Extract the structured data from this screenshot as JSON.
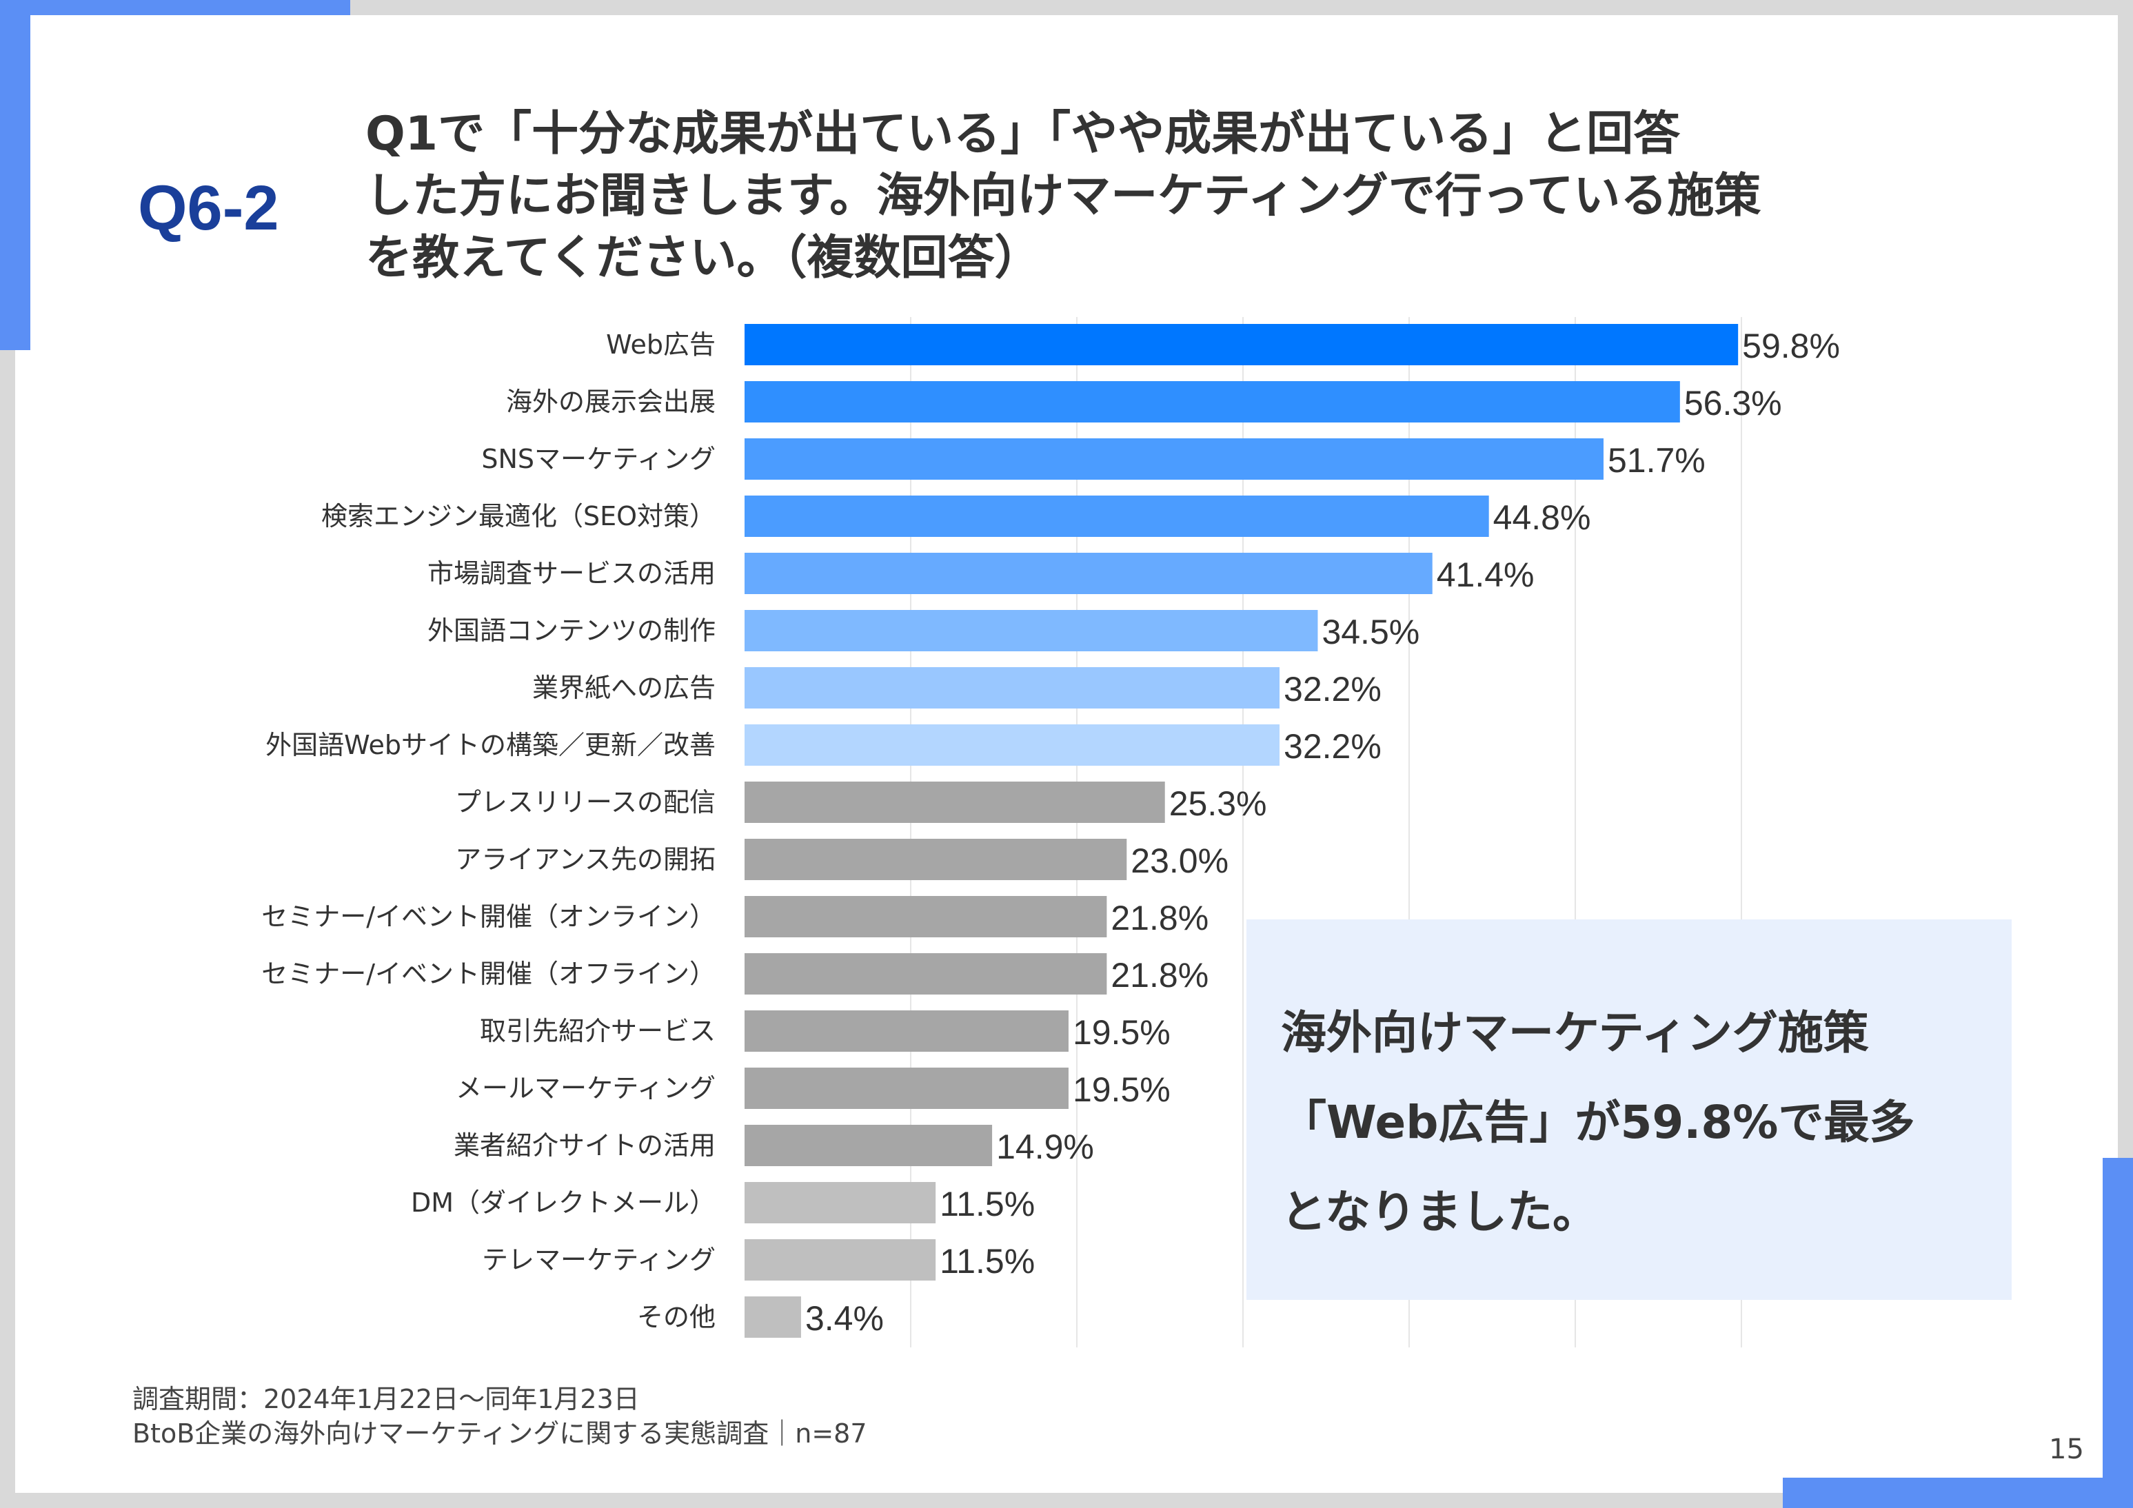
{
  "header": {
    "q_label": "Q6-2",
    "question_lines": [
      "Q1で「十分な成果が出ている」「やや成果が出ている」と回答",
      "した方にお聞きします。海外向けマーケティングで行っている施策",
      "を教えてください。（複数回答）"
    ]
  },
  "chart_data": {
    "type": "bar",
    "orientation": "horizontal",
    "categories": [
      "Web広告",
      "海外の展示会出展",
      "SNSマーケティング",
      "検索エンジン最適化（SEO対策）",
      "市場調査サービスの活用",
      "外国語コンテンツの制作",
      "業界紙への広告",
      "外国語Webサイトの構築／更新／改善",
      "プレスリリースの配信",
      "アライアンス先の開拓",
      "セミナー/イベント開催（オンライン）",
      "セミナー/イベント開催（オフライン）",
      "取引先紹介サービス",
      "メールマーケティング",
      "業者紹介サイトの活用",
      "DM（ダイレクトメール）",
      "テレマーケティング",
      "その他"
    ],
    "values": [
      59.8,
      56.3,
      51.7,
      44.8,
      41.4,
      34.5,
      32.2,
      32.2,
      25.3,
      23.0,
      21.8,
      21.8,
      19.5,
      19.5,
      14.9,
      11.5,
      11.5,
      3.4
    ],
    "value_labels": [
      "59.8%",
      "56.3%",
      "51.7%",
      "44.8%",
      "41.4%",
      "34.5%",
      "32.2%",
      "32.2%",
      "25.3%",
      "23.0%",
      "21.8%",
      "21.8%",
      "19.5%",
      "19.5%",
      "14.9%",
      "11.5%",
      "11.5%",
      "3.4%"
    ],
    "bar_colors": [
      "#0077ff",
      "#2f8fff",
      "#4b9cff",
      "#4b9cff",
      "#66aaff",
      "#7fb9ff",
      "#99c7ff",
      "#b3d6ff",
      "#a6a6a6",
      "#a6a6a6",
      "#a6a6a6",
      "#a6a6a6",
      "#a6a6a6",
      "#a6a6a6",
      "#a6a6a6",
      "#bfbfbf",
      "#bfbfbf",
      "#bfbfbf"
    ],
    "xlim": [
      0,
      60
    ],
    "grid": true,
    "unit": "%"
  },
  "callout": {
    "lines": [
      "海外向けマーケティング施策",
      "「Web広告」が59.8%で最多",
      "となりました。"
    ]
  },
  "footnote": {
    "lines": [
      "調査期間：2024年1月22日〜同年1月23日",
      "BtoB企業の海外向けマーケティングに関する実態調査｜n=87"
    ]
  },
  "page_number": "15",
  "colors": {
    "accent": "#5b8ff5",
    "title": "#1a3f9a",
    "callout_bg": "#e8f0fd"
  }
}
